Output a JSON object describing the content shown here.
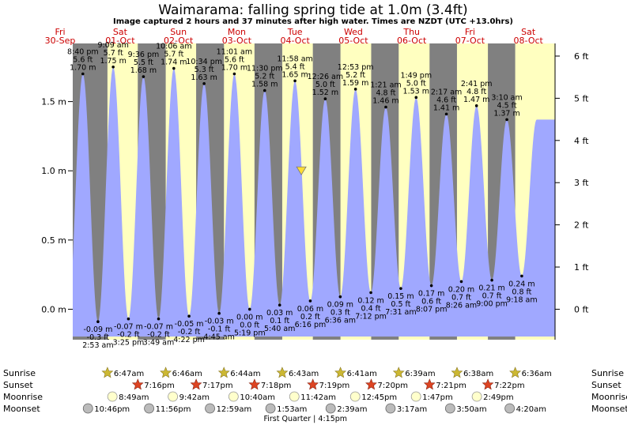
{
  "title": "Waimarama: falling  spring tide at 1.0m (3.4ft)",
  "subtitle": "Image captured 2 hours and 37 minutes after high water. Times are NZDT (UTC +13.0hrs)",
  "colors": {
    "night": "#808080",
    "day": "#ffffc0",
    "water": "#a0a8ff",
    "day_label": "#cc0000",
    "marker": "#ffdd33",
    "star_sunrise": "#ccb833",
    "star_sunset": "#dd4422",
    "moon": "#ffffcc",
    "moonset": "#bbbbbb"
  },
  "chart_data": {
    "type": "area",
    "x_range": [
      "2022-09-30 16:30",
      "2022-10-08 23:00"
    ],
    "ylim": [
      -0.22,
      1.92
    ],
    "y_left_ticks": [
      {
        "v": 1.5,
        "label": "1.5 m"
      },
      {
        "v": 1.0,
        "label": "1.0 m"
      },
      {
        "v": 0.5,
        "label": "0.5 m"
      },
      {
        "v": 0.0,
        "label": "0.0 m"
      }
    ],
    "y_right_ticks": [
      {
        "ft": 6,
        "label": "6 ft"
      },
      {
        "ft": 5,
        "label": "5 ft"
      },
      {
        "ft": 4,
        "label": "4 ft"
      },
      {
        "ft": 3,
        "label": "3 ft"
      },
      {
        "ft": 2,
        "label": "2 ft"
      },
      {
        "ft": 1,
        "label": "1 ft"
      },
      {
        "ft": 0,
        "label": "0 ft"
      }
    ],
    "days": [
      {
        "day": "Fri",
        "date": "30-Sep"
      },
      {
        "day": "Sat",
        "date": "01-Oct"
      },
      {
        "day": "Sun",
        "date": "02-Oct"
      },
      {
        "day": "Mon",
        "date": "03-Oct"
      },
      {
        "day": "Tue",
        "date": "04-Oct"
      },
      {
        "day": "Wed",
        "date": "05-Oct"
      },
      {
        "day": "Thu",
        "date": "06-Oct"
      },
      {
        "day": "Fri",
        "date": "07-Oct"
      },
      {
        "day": "Sat",
        "date": "08-Oct"
      }
    ],
    "daylight": [
      {
        "rise": "2022-10-01 06:47",
        "set": "2022-10-01 19:16"
      },
      {
        "rise": "2022-10-02 06:46",
        "set": "2022-10-02 19:17"
      },
      {
        "rise": "2022-10-03 06:44",
        "set": "2022-10-03 19:18"
      },
      {
        "rise": "2022-10-04 06:43",
        "set": "2022-10-04 19:19"
      },
      {
        "rise": "2022-10-05 06:41",
        "set": "2022-10-05 19:20"
      },
      {
        "rise": "2022-10-06 06:39",
        "set": "2022-10-06 19:21"
      },
      {
        "rise": "2022-10-07 06:38",
        "set": "2022-10-07 19:22"
      },
      {
        "rise": "2022-10-08 06:36",
        "set": ""
      }
    ],
    "tides": [
      {
        "t": "2022-09-30 20:40",
        "m": 1.7,
        "time": "8:40 pm",
        "ft": "5.6 ft",
        "mlabel": "1.70 m",
        "high": true
      },
      {
        "t": "2022-10-01 02:53",
        "m": -0.09,
        "time": "2:53 am",
        "ft": "-0.3 ft",
        "mlabel": "-0.09 m",
        "high": false
      },
      {
        "t": "2022-10-01 09:09",
        "m": 1.75,
        "time": "9:09 am",
        "ft": "5.7 ft",
        "mlabel": "1.75 m",
        "high": true
      },
      {
        "t": "2022-10-01 15:25",
        "m": -0.07,
        "time": "3:25 pm",
        "ft": "-0.2 ft",
        "mlabel": "-0.07 m",
        "high": false
      },
      {
        "t": "2022-10-01 21:36",
        "m": 1.68,
        "time": "9:36 pm",
        "ft": "5.5 ft",
        "mlabel": "1.68 m",
        "high": true
      },
      {
        "t": "2022-10-02 03:49",
        "m": -0.07,
        "time": "3:49 am",
        "ft": "-0.2 ft",
        "mlabel": "-0.07 m",
        "high": false
      },
      {
        "t": "2022-10-02 10:06",
        "m": 1.74,
        "time": "10:06 am",
        "ft": "5.7 ft",
        "mlabel": "1.74 m",
        "high": true
      },
      {
        "t": "2022-10-02 16:22",
        "m": -0.05,
        "time": "4:22 pm",
        "ft": "-0.2 ft",
        "mlabel": "-0.05 m",
        "high": false
      },
      {
        "t": "2022-10-02 22:34",
        "m": 1.63,
        "time": "10:34 pm",
        "ft": "5.3 ft",
        "mlabel": "1.63 m",
        "high": true
      },
      {
        "t": "2022-10-03 04:45",
        "m": -0.03,
        "time": "4:45 am",
        "ft": "-0.1 ft",
        "mlabel": "-0.03 m",
        "high": false
      },
      {
        "t": "2022-10-03 11:01",
        "m": 1.7,
        "time": "11:01 am",
        "ft": "5.6 ft",
        "mlabel": "1.70 m",
        "high": true
      },
      {
        "t": "2022-10-03 17:19",
        "m": 0.0,
        "time": "5:19 pm",
        "ft": "0.0 ft",
        "mlabel": "0.00 m",
        "high": false
      },
      {
        "t": "2022-10-03 23:30",
        "m": 1.58,
        "time": "11:30 pm",
        "ft": "5.2 ft",
        "mlabel": "1.58 m",
        "high": true
      },
      {
        "t": "2022-10-04 05:40",
        "m": 0.03,
        "time": "5:40 am",
        "ft": "0.1 ft",
        "mlabel": "0.03 m",
        "high": false
      },
      {
        "t": "2022-10-04 11:58",
        "m": 1.65,
        "time": "11:58 am",
        "ft": "5.4 ft",
        "mlabel": "1.65 m",
        "high": true
      },
      {
        "t": "2022-10-04 18:16",
        "m": 0.06,
        "time": "6:16 pm",
        "ft": "0.2 ft",
        "mlabel": "0.06 m",
        "high": false
      },
      {
        "t": "2022-10-05 00:26",
        "m": 1.52,
        "time": "12:26 am",
        "ft": "5.0 ft",
        "mlabel": "1.52 m",
        "high": true
      },
      {
        "t": "2022-10-05 06:36",
        "m": 0.09,
        "time": "6:36 am",
        "ft": "0.3 ft",
        "mlabel": "0.09 m",
        "high": false
      },
      {
        "t": "2022-10-05 12:53",
        "m": 1.59,
        "time": "12:53 pm",
        "ft": "5.2 ft",
        "mlabel": "1.59 m",
        "high": true
      },
      {
        "t": "2022-10-05 19:12",
        "m": 0.12,
        "time": "7:12 pm",
        "ft": "0.4 ft",
        "mlabel": "0.12 m",
        "high": false
      },
      {
        "t": "2022-10-06 01:21",
        "m": 1.46,
        "time": "1:21 am",
        "ft": "4.8 ft",
        "mlabel": "1.46 m",
        "high": true
      },
      {
        "t": "2022-10-06 07:31",
        "m": 0.15,
        "time": "7:31 am",
        "ft": "0.5 ft",
        "mlabel": "0.15 m",
        "high": false
      },
      {
        "t": "2022-10-06 13:49",
        "m": 1.53,
        "time": "1:49 pm",
        "ft": "5.0 ft",
        "mlabel": "1.53 m",
        "high": true
      },
      {
        "t": "2022-10-06 20:07",
        "m": 0.17,
        "time": "8:07 pm",
        "ft": "0.6 ft",
        "mlabel": "0.17 m",
        "high": false
      },
      {
        "t": "2022-10-07 02:17",
        "m": 1.41,
        "time": "2:17 am",
        "ft": "4.6 ft",
        "mlabel": "1.41 m",
        "high": true
      },
      {
        "t": "2022-10-07 08:26",
        "m": 0.2,
        "time": "8:26 am",
        "ft": "0.7 ft",
        "mlabel": "0.20 m",
        "high": false
      },
      {
        "t": "2022-10-07 14:41",
        "m": 1.47,
        "time": "2:41 pm",
        "ft": "4.8 ft",
        "mlabel": "1.47 m",
        "high": true
      },
      {
        "t": "2022-10-07 21:00",
        "m": 0.21,
        "time": "9:00 pm",
        "ft": "0.7 ft",
        "mlabel": "0.21 m",
        "high": false
      },
      {
        "t": "2022-10-08 03:10",
        "m": 1.37,
        "time": "3:10 am",
        "ft": "4.5 ft",
        "mlabel": "1.37 m",
        "high": true
      },
      {
        "t": "2022-10-08 09:18",
        "m": 0.24,
        "time": "9:18 am",
        "ft": "0.8 ft",
        "mlabel": "0.24 m",
        "high": false
      }
    ],
    "current": {
      "t": "2022-10-04 14:35",
      "m": 1.0
    },
    "rows": {
      "sunrise": {
        "label": "Sunrise",
        "events": [
          {
            "t": "2022-10-01 06:47",
            "text": "6:47am"
          },
          {
            "t": "2022-10-02 06:46",
            "text": "6:46am"
          },
          {
            "t": "2022-10-03 06:44",
            "text": "6:44am"
          },
          {
            "t": "2022-10-04 06:43",
            "text": "6:43am"
          },
          {
            "t": "2022-10-05 06:41",
            "text": "6:41am"
          },
          {
            "t": "2022-10-06 06:39",
            "text": "6:39am"
          },
          {
            "t": "2022-10-07 06:38",
            "text": "6:38am"
          },
          {
            "t": "2022-10-08 06:36",
            "text": "6:36am"
          }
        ]
      },
      "sunset": {
        "label": "Sunset",
        "events": [
          {
            "t": "2022-10-01 19:16",
            "text": "7:16pm"
          },
          {
            "t": "2022-10-02 19:17",
            "text": "7:17pm"
          },
          {
            "t": "2022-10-03 19:18",
            "text": "7:18pm"
          },
          {
            "t": "2022-10-04 19:19",
            "text": "7:19pm"
          },
          {
            "t": "2022-10-05 19:20",
            "text": "7:20pm"
          },
          {
            "t": "2022-10-06 19:21",
            "text": "7:21pm"
          },
          {
            "t": "2022-10-07 19:22",
            "text": "7:22pm"
          }
        ]
      },
      "moonrise": {
        "label": "Moonrise",
        "events": [
          {
            "t": "2022-10-01 08:49",
            "text": "8:49am"
          },
          {
            "t": "2022-10-02 09:42",
            "text": "9:42am"
          },
          {
            "t": "2022-10-03 10:40",
            "text": "10:40am"
          },
          {
            "t": "2022-10-04 11:42",
            "text": "11:42am"
          },
          {
            "t": "2022-10-05 12:45",
            "text": "12:45pm"
          },
          {
            "t": "2022-10-06 13:47",
            "text": "1:47pm"
          },
          {
            "t": "2022-10-07 14:49",
            "text": "2:49pm"
          }
        ]
      },
      "moonset": {
        "label": "Moonset",
        "events": [
          {
            "t": "2022-09-30 22:46",
            "text": "10:46pm"
          },
          {
            "t": "2022-10-01 23:56",
            "text": "11:56pm"
          },
          {
            "t": "2022-10-03 00:59",
            "text": "12:59am"
          },
          {
            "t": "2022-10-04 01:53",
            "text": "1:53am"
          },
          {
            "t": "2022-10-05 02:39",
            "text": "2:39am"
          },
          {
            "t": "2022-10-06 03:17",
            "text": "3:17am"
          },
          {
            "t": "2022-10-07 03:50",
            "text": "3:50am"
          },
          {
            "t": "2022-10-08 04:20",
            "text": "4:20am"
          }
        ]
      }
    },
    "moon_phase": {
      "t": "2022-10-04 16:15",
      "text": "First Quarter | 4:15pm"
    }
  }
}
